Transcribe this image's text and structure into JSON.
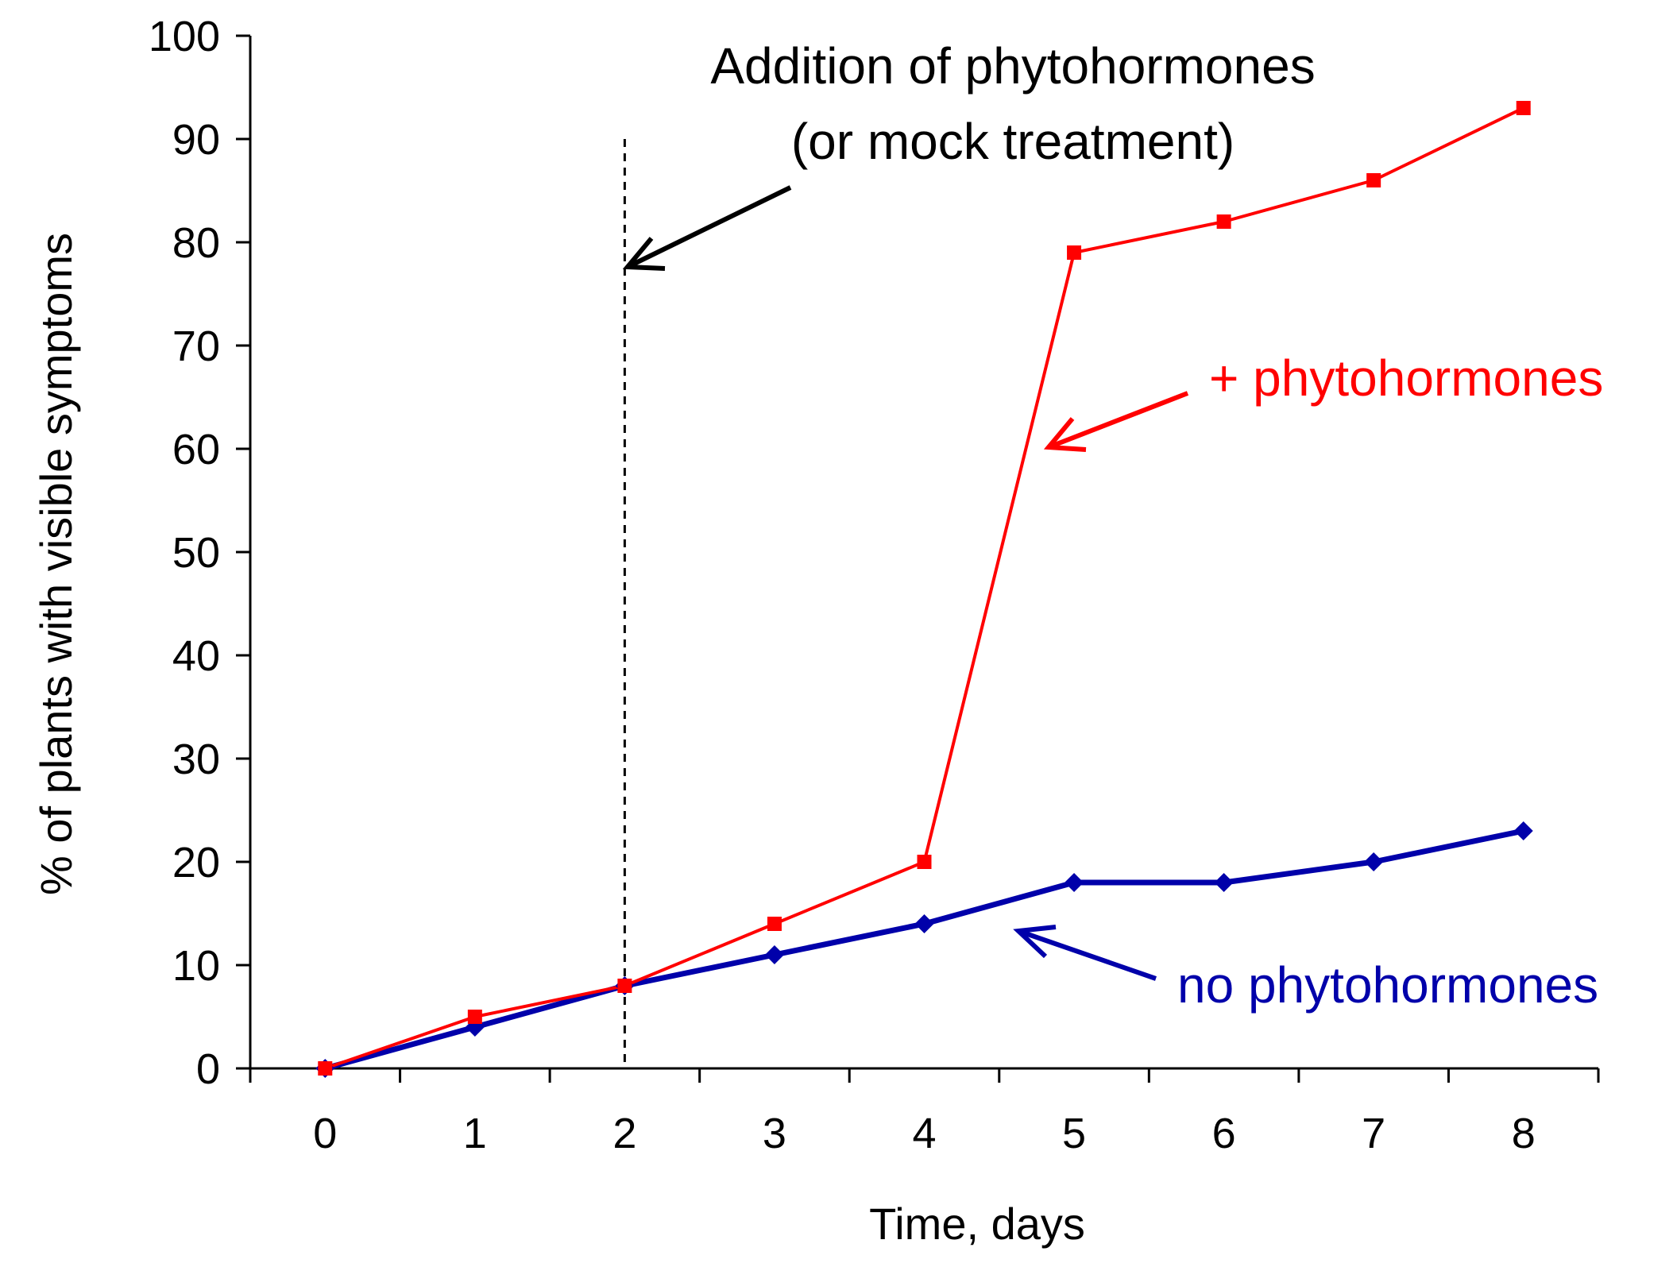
{
  "chart_data": {
    "type": "line",
    "title": "",
    "xlabel": "Time, days",
    "ylabel": "% of plants with visible symptoms",
    "x": [
      0,
      1,
      2,
      3,
      4,
      5,
      6,
      7,
      8
    ],
    "x_ticks": [
      "0",
      "1",
      "2",
      "3",
      "4",
      "5",
      "6",
      "7",
      "8"
    ],
    "y_ticks": [
      "0",
      "10",
      "20",
      "30",
      "40",
      "50",
      "60",
      "70",
      "80",
      "90",
      "100"
    ],
    "xlim": [
      -0.5,
      8.5
    ],
    "ylim": [
      0,
      100
    ],
    "grid": false,
    "series": [
      {
        "name": "+ phytohormones",
        "color": "#ff0000",
        "marker": "square",
        "values": [
          0,
          5,
          8,
          14,
          20,
          79,
          82,
          86,
          93
        ]
      },
      {
        "name": "no phytohormones",
        "color": "#0000aa",
        "marker": "diamond",
        "values": [
          0,
          4,
          8,
          11,
          14,
          18,
          18,
          20,
          23
        ]
      }
    ],
    "annotations": {
      "treatment_line_x": 2,
      "treatment_line": [
        "Addition of phytohormones",
        "(or mock treatment)"
      ],
      "treated_label": "+ phytohormones",
      "untreated_label": "no phytohormones"
    }
  },
  "colors": {
    "treated": "#ff0000",
    "untreated": "#0000aa",
    "axis": "#000000"
  }
}
